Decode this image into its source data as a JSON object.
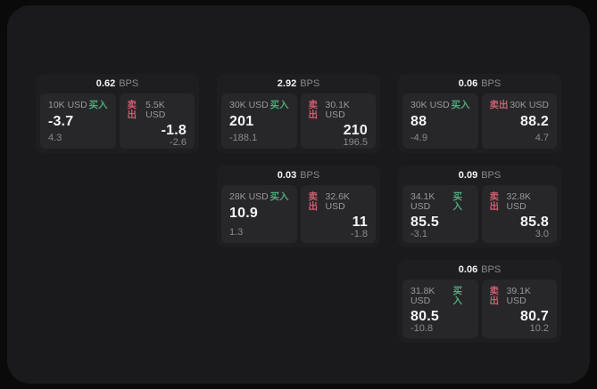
{
  "colors": {
    "background": "#0a0a0b",
    "surface": "#1a1a1c",
    "card": "#1e1e21",
    "panel": "#27272a",
    "buy_accent": "#4fa97a",
    "sell_accent": "#cf5d6f"
  },
  "cards": [
    {
      "bps": "0.62",
      "unit": "BPS",
      "buy": {
        "size": "10K USD",
        "label": "买入",
        "value": "-3.7",
        "sub": "4.3"
      },
      "sell": {
        "label": "卖出",
        "size": "5.5K USD",
        "value": "-1.8",
        "sub": "-2.6"
      }
    },
    {
      "bps": "2.92",
      "unit": "BPS",
      "buy": {
        "size": "30K USD",
        "label": "买入",
        "value": "201",
        "sub": "-188.1"
      },
      "sell": {
        "label": "卖出",
        "size": "30.1K USD",
        "value": "210",
        "sub": "196.5"
      }
    },
    {
      "bps": "0.06",
      "unit": "BPS",
      "buy": {
        "size": "30K USD",
        "label": "买入",
        "value": "88",
        "sub": "-4.9"
      },
      "sell": {
        "label": "卖出",
        "size": "30K USD",
        "value": "88.2",
        "sub": "4.7"
      }
    },
    {
      "bps": "0.03",
      "unit": "BPS",
      "buy": {
        "size": "28K USD",
        "label": "买入",
        "value": "10.9",
        "sub": "1.3"
      },
      "sell": {
        "label": "卖出",
        "size": "32.6K USD",
        "value": "11",
        "sub": "-1.8"
      }
    },
    {
      "bps": "0.09",
      "unit": "BPS",
      "buy": {
        "size": "34.1K USD",
        "label": "买入",
        "value": "85.5",
        "sub": "-3.1"
      },
      "sell": {
        "label": "卖出",
        "size": "32.8K USD",
        "value": "85.8",
        "sub": "3.0"
      }
    },
    {
      "bps": "0.06",
      "unit": "BPS",
      "buy": {
        "size": "31.8K USD",
        "label": "买入",
        "value": "80.5",
        "sub": "-10.8"
      },
      "sell": {
        "label": "卖出",
        "size": "39.1K USD",
        "value": "80.7",
        "sub": "10.2"
      }
    }
  ]
}
